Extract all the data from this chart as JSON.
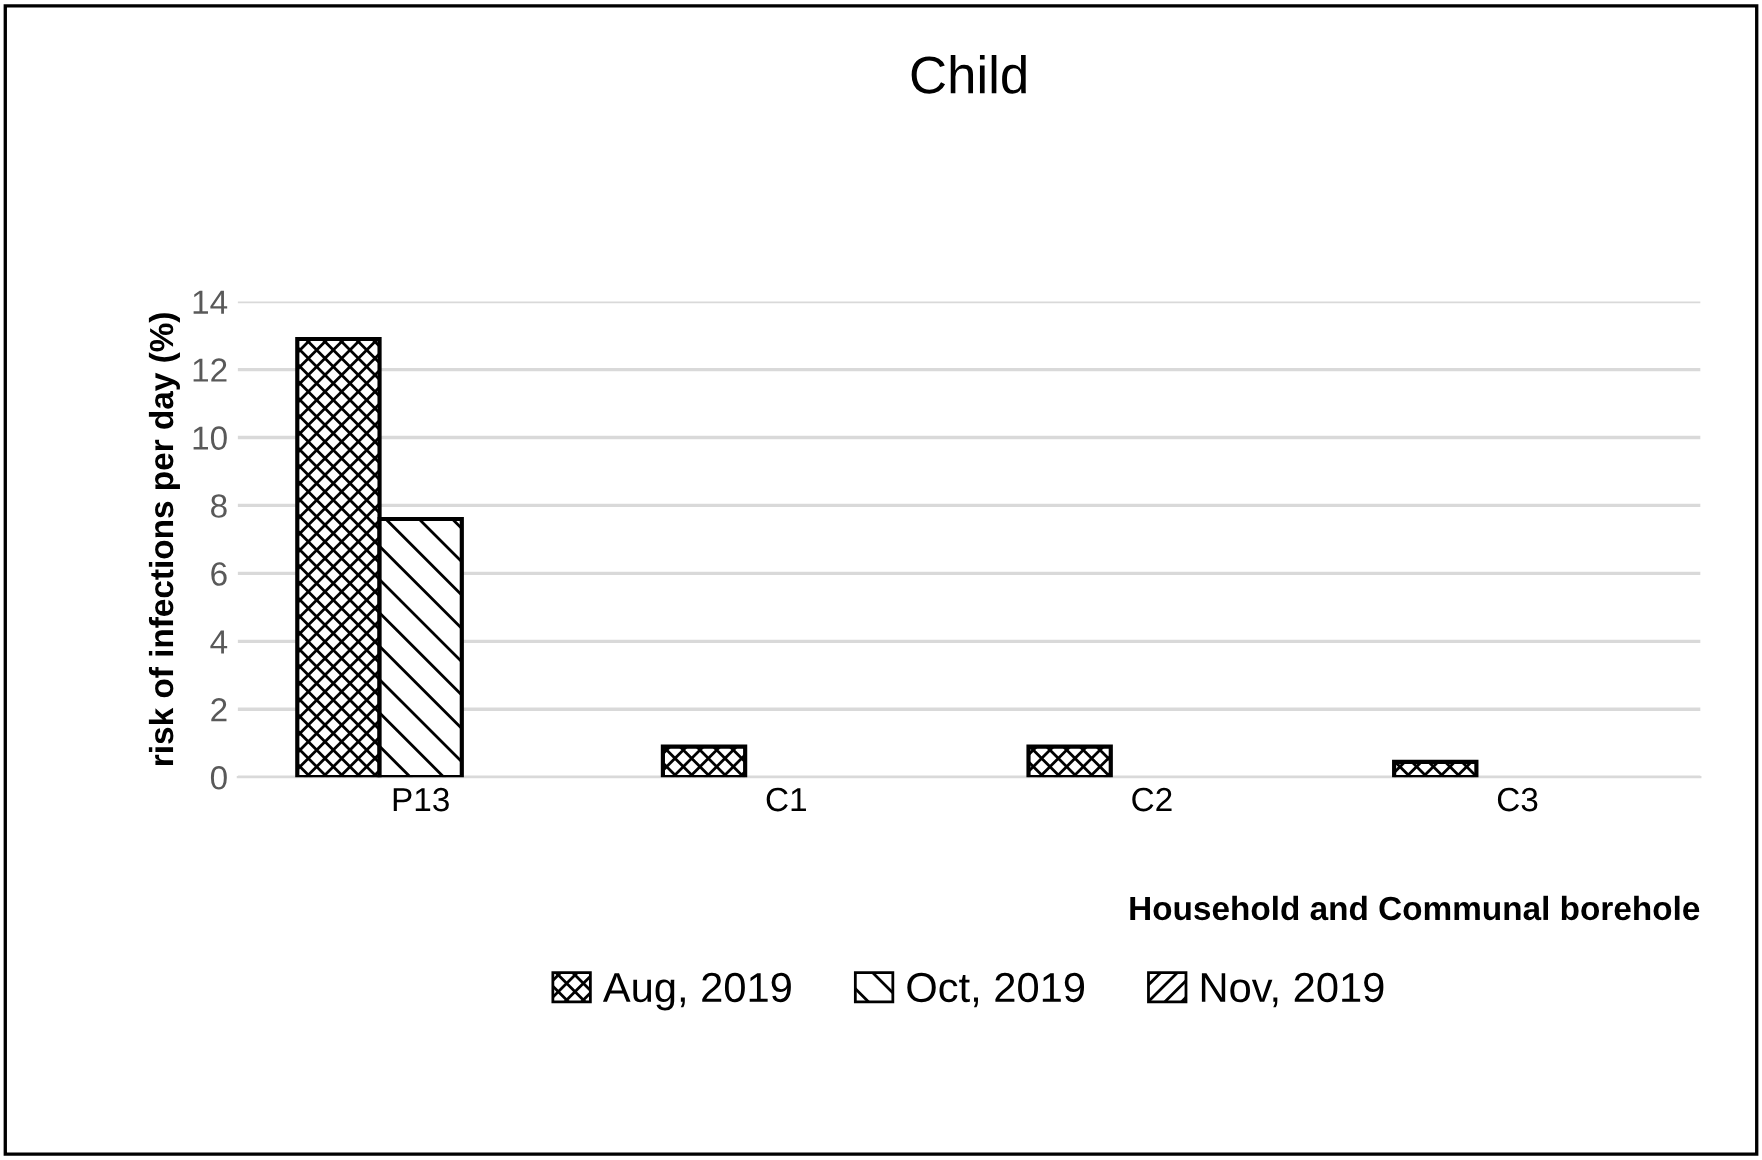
{
  "chart_data": {
    "type": "bar",
    "title": "Child",
    "xlabel": "Household and Communal borehole",
    "ylabel": "risk of infections per day (%)",
    "categories": [
      "P13",
      "C1",
      "C2",
      "C3"
    ],
    "series": [
      {
        "name": "Aug, 2019",
        "color": "#000000",
        "values": [
          12.9,
          0.9,
          0.9,
          0.45
        ]
      },
      {
        "name": "Oct, 2019",
        "color": "#000000",
        "values": [
          7.6,
          null,
          null,
          null
        ]
      },
      {
        "name": "Nov, 2019",
        "color": "#000000",
        "values": [
          null,
          null,
          null,
          null
        ]
      }
    ],
    "ylim": [
      0,
      14
    ],
    "yticks": [
      0,
      2,
      4,
      6,
      8,
      10,
      12,
      14
    ],
    "grid": "y",
    "legend": "bottom"
  }
}
